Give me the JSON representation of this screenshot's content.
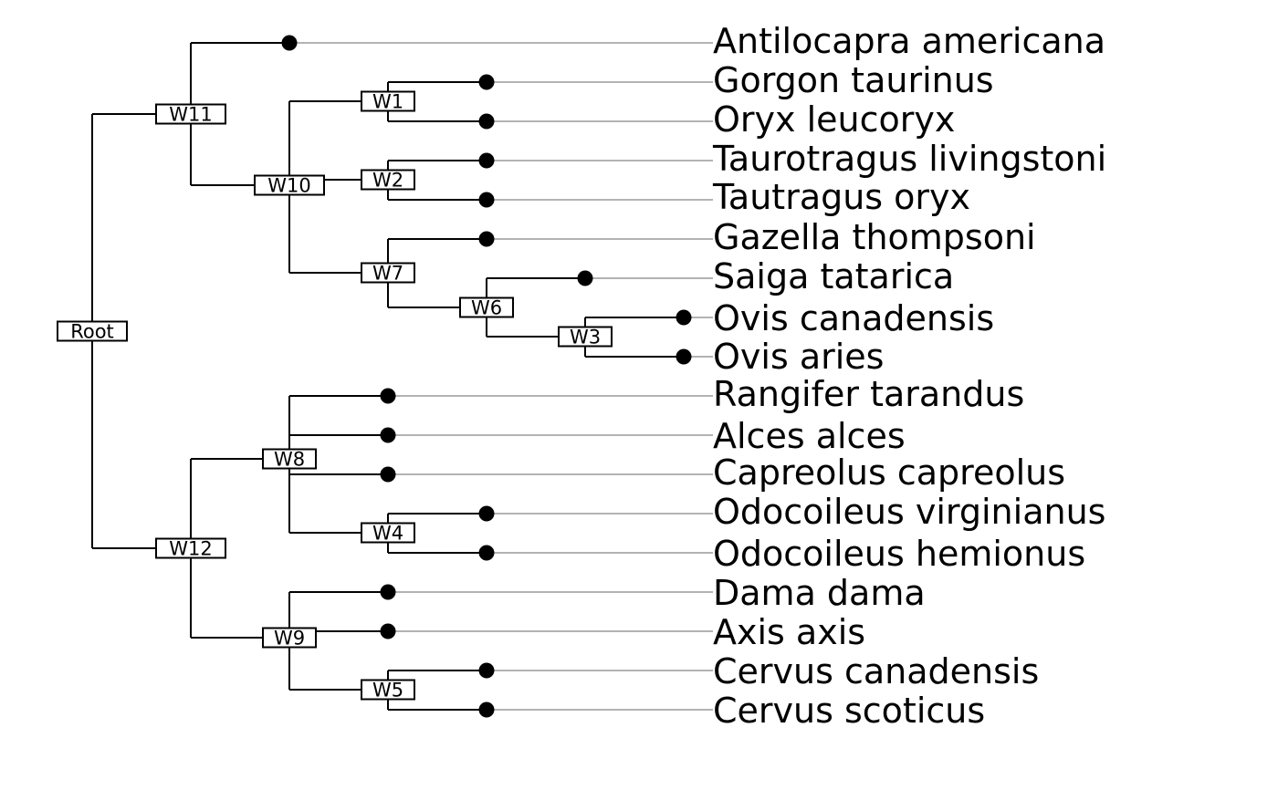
{
  "diagram": {
    "type": "phylogenetic-tree",
    "colors": {
      "edge": "#000000",
      "guide": "#b3b3b3",
      "tip_dot": "#000000",
      "node_box_fill": "#ffffff"
    },
    "internal_nodes": [
      {
        "id": "Root",
        "label": "Root",
        "children": [
          "W11",
          "W12"
        ]
      },
      {
        "id": "W11",
        "label": "W11",
        "children": [
          "t_antilocapra",
          "W10"
        ]
      },
      {
        "id": "W10",
        "label": "W10",
        "children": [
          "W1",
          "W2",
          "W7"
        ]
      },
      {
        "id": "W1",
        "label": "W1",
        "children": [
          "t_gorgon",
          "t_oryx"
        ]
      },
      {
        "id": "W2",
        "label": "W2",
        "children": [
          "t_taurotragus",
          "t_tautragus"
        ]
      },
      {
        "id": "W7",
        "label": "W7",
        "children": [
          "t_gazella",
          "W6"
        ]
      },
      {
        "id": "W6",
        "label": "W6",
        "children": [
          "t_saiga",
          "W3"
        ]
      },
      {
        "id": "W3",
        "label": "W3",
        "children": [
          "t_ovis_can",
          "t_ovis_aries"
        ]
      },
      {
        "id": "W12",
        "label": "W12",
        "children": [
          "W8",
          "W9"
        ]
      },
      {
        "id": "W8",
        "label": "W8",
        "children": [
          "t_rangifer",
          "t_alces",
          "t_capreolus",
          "W4"
        ]
      },
      {
        "id": "W4",
        "label": "W4",
        "children": [
          "t_odo_virg",
          "t_odo_hem"
        ]
      },
      {
        "id": "W9",
        "label": "W9",
        "children": [
          "t_dama",
          "t_axis",
          "W5"
        ]
      },
      {
        "id": "W5",
        "label": "W5",
        "children": [
          "t_cervus_can",
          "t_cervus_sco"
        ]
      }
    ],
    "tips": [
      {
        "id": "t_antilocapra",
        "label": "Antilocapra americana"
      },
      {
        "id": "t_gorgon",
        "label": "Gorgon taurinus"
      },
      {
        "id": "t_oryx",
        "label": "Oryx leucoryx"
      },
      {
        "id": "t_taurotragus",
        "label": "Taurotragus livingstoni"
      },
      {
        "id": "t_tautragus",
        "label": "Tautragus oryx"
      },
      {
        "id": "t_gazella",
        "label": "Gazella thompsoni"
      },
      {
        "id": "t_saiga",
        "label": "Saiga tatarica"
      },
      {
        "id": "t_ovis_can",
        "label": "Ovis canadensis"
      },
      {
        "id": "t_ovis_aries",
        "label": "Ovis aries"
      },
      {
        "id": "t_rangifer",
        "label": "Rangifer tarandus"
      },
      {
        "id": "t_alces",
        "label": "Alces alces"
      },
      {
        "id": "t_capreolus",
        "label": "Capreolus capreolus"
      },
      {
        "id": "t_odo_virg",
        "label": "Odocoileus virginianus"
      },
      {
        "id": "t_odo_hem",
        "label": "Odocoileus hemionus"
      },
      {
        "id": "t_dama",
        "label": "Dama dama"
      },
      {
        "id": "t_axis",
        "label": "Axis axis"
      },
      {
        "id": "t_cervus_can",
        "label": "Cervus canadensis"
      },
      {
        "id": "t_cervus_sco",
        "label": "Cervus scoticus"
      }
    ]
  }
}
